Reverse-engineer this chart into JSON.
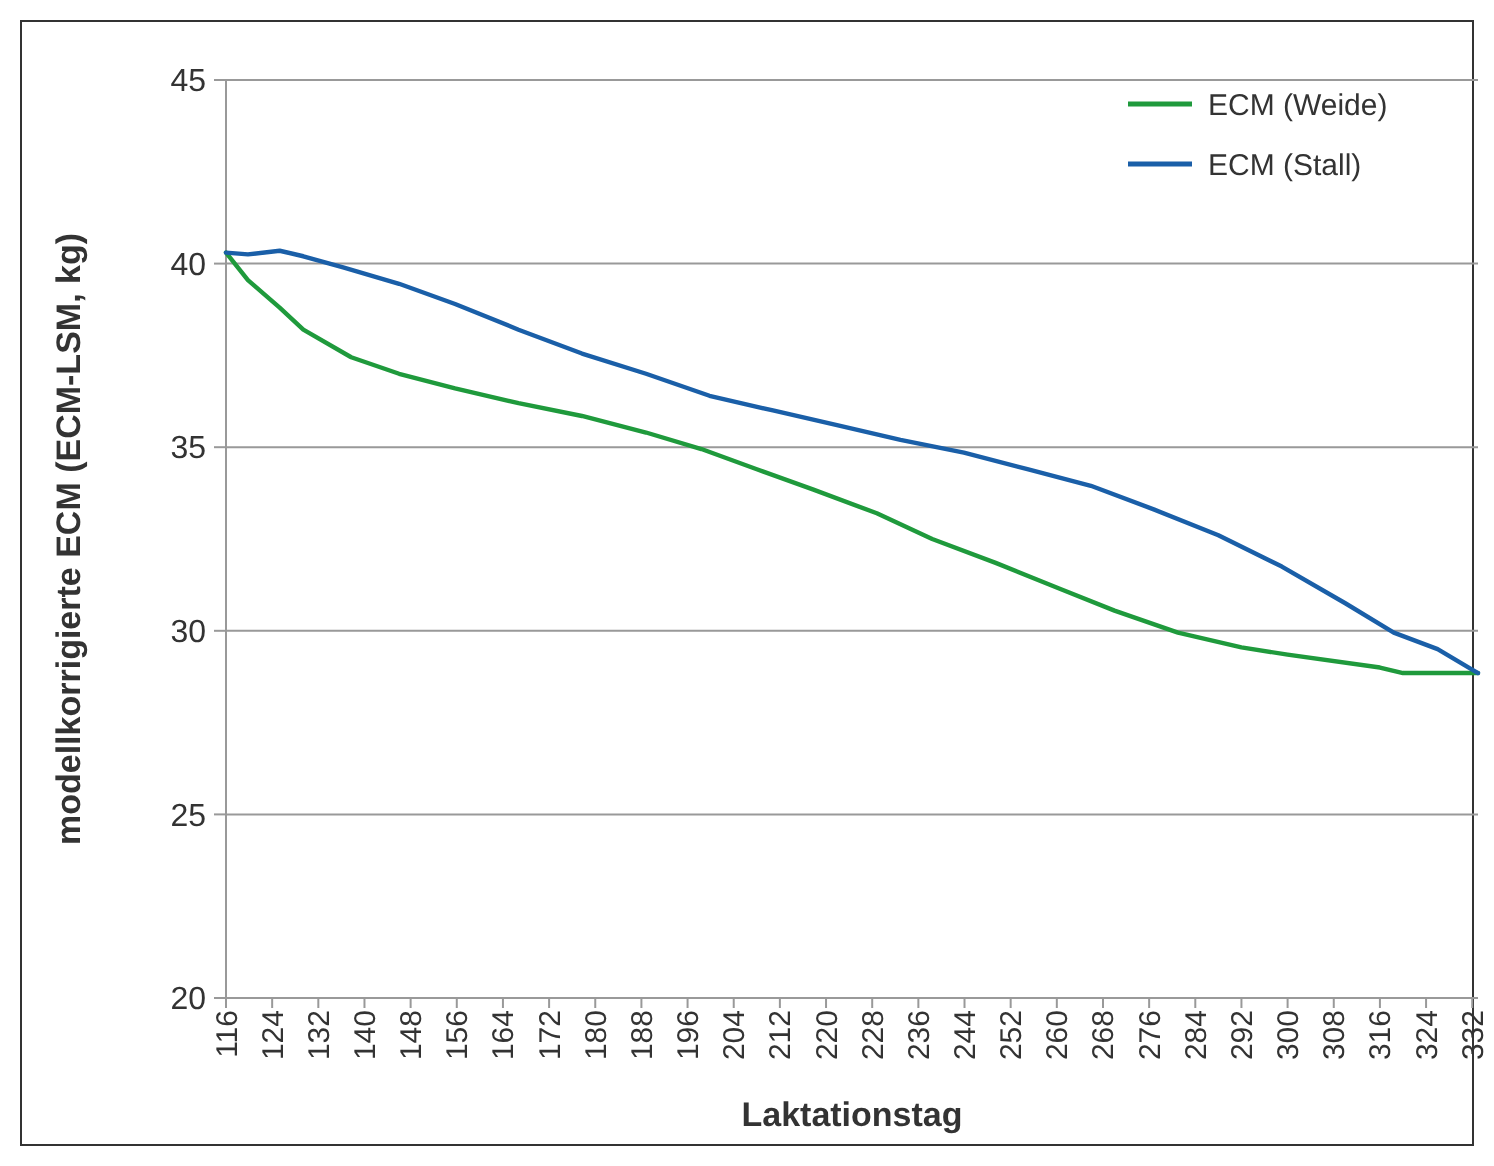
{
  "chart_data": {
    "type": "line",
    "xlabel": "Laktationstag",
    "ylabel": "modellkorrigierte ECM (ECM-LSM, kg)",
    "xlim": [
      116,
      333
    ],
    "xticks": [
      116,
      124,
      132,
      140,
      148,
      156,
      164,
      172,
      180,
      188,
      196,
      204,
      212,
      220,
      228,
      236,
      244,
      252,
      260,
      268,
      276,
      284,
      292,
      300,
      308,
      316,
      324,
      332
    ],
    "ylim": [
      20,
      45
    ],
    "yticks": [
      20,
      25,
      30,
      35,
      40,
      45
    ],
    "grid": "y",
    "legend": "top right",
    "marker": "none",
    "line_style": "solid",
    "series": [
      {
        "name": "ECM (Weide)",
        "color": "#1f9a3c",
        "x": [
          116,
          119.8,
          125.3,
          129.4,
          137.7,
          146,
          155.7,
          166.7,
          177.7,
          188.8,
          198.4,
          208,
          217.7,
          228.8,
          238.4,
          249.4,
          260.4,
          270,
          281,
          292,
          300,
          316,
          320,
          333
        ],
        "values": [
          40.3,
          39.55,
          38.8,
          38.2,
          37.45,
          37,
          36.6,
          36.2,
          35.85,
          35.4,
          34.95,
          34.4,
          33.85,
          33.2,
          32.5,
          31.85,
          31.15,
          30.55,
          29.95,
          29.55,
          29.35,
          29,
          28.85,
          28.85
        ]
      },
      {
        "name": "ECM (Stall)",
        "color": "#1a5fa8",
        "x": [
          116,
          119.8,
          125.3,
          129.4,
          136.3,
          146,
          155.7,
          166.7,
          177.7,
          188.8,
          199.8,
          210.8,
          221.9,
          232.9,
          243.9,
          254.9,
          265.9,
          276.9,
          288,
          299,
          310,
          318.4,
          326,
          333
        ],
        "values": [
          40.3,
          40.25,
          40.35,
          40.2,
          39.9,
          39.45,
          38.9,
          38.2,
          37.55,
          37,
          36.4,
          36,
          35.6,
          35.2,
          34.85,
          34.4,
          33.95,
          33.3,
          32.6,
          31.75,
          30.75,
          29.95,
          29.5,
          28.85
        ]
      }
    ]
  }
}
